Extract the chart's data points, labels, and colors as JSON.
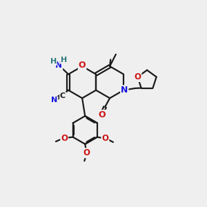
{
  "bg_color": "#efefef",
  "bond_color": "#1a1a1a",
  "bond_width": 1.6,
  "atom_colors": {
    "C": "#1a1a1a",
    "N": "#1414e0",
    "O": "#cc1414",
    "H": "#2a7a7a"
  }
}
